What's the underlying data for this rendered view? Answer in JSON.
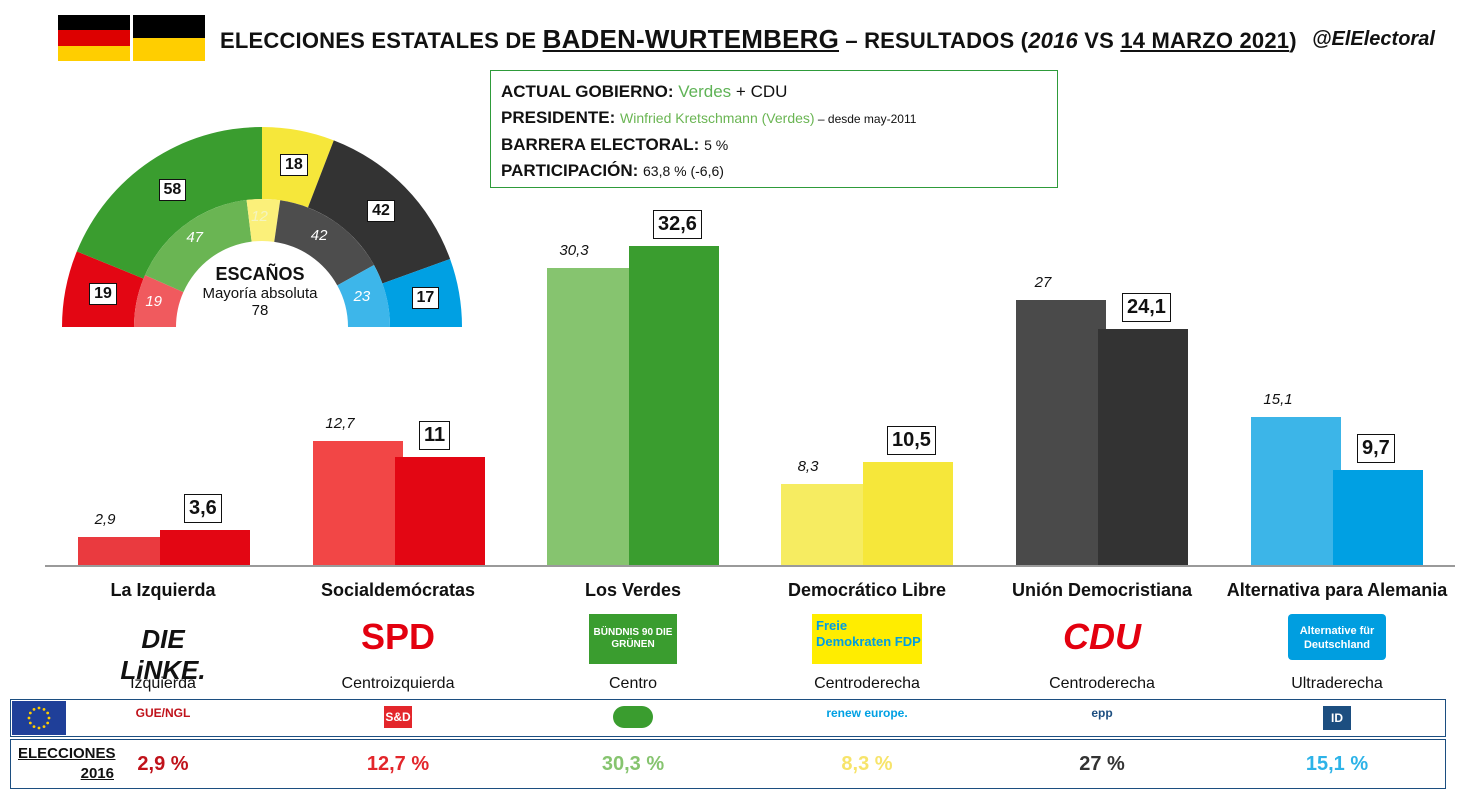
{
  "header": {
    "title_prefix": "ELECCIONES ESTATALES DE ",
    "title_state": "BADEN-WURTEMBERG",
    "title_dash": " – RESULTADOS (",
    "title_year_old": "2016",
    "title_vs": " VS ",
    "title_date": "14 MARZO 2021",
    "title_close": ")",
    "handle": "@ElElectoral",
    "flag_colors": [
      "#000000",
      "#dd0000",
      "#ffce00"
    ]
  },
  "info": {
    "gov_label": "ACTUAL GOBIERNO:",
    "gov_party1": "Verdes",
    "gov_plus": " + ",
    "gov_party2": "CDU",
    "pres_label": "PRESIDENTE:",
    "pres_name": "Winfried Kretschmann (Verdes)",
    "pres_since": " – desde may-2011",
    "barrier_label": "BARRERA ELECTORAL:",
    "barrier_value": "5 %",
    "turnout_label": "PARTICIPACIÓN:",
    "turnout_value": "63,8 % (-6,6)"
  },
  "hemicycle": {
    "title": "ESCAÑOS",
    "majority_label": "Mayoría absoluta",
    "majority_value": "78",
    "seats_2021": [
      19,
      58,
      18,
      42,
      17
    ],
    "seats_2016": [
      19,
      47,
      12,
      42,
      23
    ],
    "seat_labels_2021": [
      "19",
      "58",
      "18",
      "42",
      "17"
    ],
    "seat_labels_2016": [
      "19",
      "47",
      "12",
      "42",
      "23"
    ],
    "colors_2021": [
      "#e30613",
      "#3a9d2f",
      "#f6e73a",
      "#333333",
      "#00a0e3"
    ],
    "colors_2016": [
      "#f05a5e",
      "#6ab553",
      "#fbf07a",
      "#4d4d4d",
      "#3db6ea"
    ]
  },
  "chart_data": {
    "type": "bar",
    "categories": [
      "La Izquierda",
      "Socialdemócratas",
      "Los Verdes",
      "Democrático Libre",
      "Unión Democristiana",
      "Alternativa para Alemania"
    ],
    "series": [
      {
        "name": "2016",
        "values": [
          2.9,
          12.7,
          30.3,
          8.3,
          27,
          15.1
        ]
      },
      {
        "name": "14 MARZO 2021",
        "values": [
          3.6,
          11,
          32.6,
          10.5,
          24.1,
          9.7
        ]
      }
    ],
    "labels_2016": [
      "2,9",
      "12,7",
      "30,3",
      "8,3",
      "27",
      "15,1"
    ],
    "labels_2021": [
      "3,6",
      "11",
      "32,6",
      "10,5",
      "24,1",
      "9,7"
    ],
    "colors_2016": [
      "#ea3a3f",
      "#f24646",
      "#86c46f",
      "#f6ec61",
      "#4a4a4a",
      "#3cb5e8"
    ],
    "colors_2021": [
      "#e30613",
      "#e30613",
      "#3a9d2f",
      "#f6e73a",
      "#333333",
      "#00a0e3"
    ],
    "ylim": [
      0,
      35
    ],
    "grid": false
  },
  "parties": [
    {
      "name": "La Izquierda",
      "logo": "DIE LiNKE.",
      "ideology": "Izquierda",
      "eu_group": "GUE/NGL",
      "pct2016": "2,9 %",
      "color": "#c0121a"
    },
    {
      "name": "Socialdemócratas",
      "logo": "SPD",
      "ideology": "Centroizquierda",
      "eu_group": "S&D",
      "pct2016": "12,7 %",
      "color": "#e3262b"
    },
    {
      "name": "Los Verdes",
      "logo": "BÜNDNIS 90 DIE GRÜNEN",
      "ideology": "Centro",
      "eu_group": "",
      "pct2016": "30,3 %",
      "color": "#86c46f"
    },
    {
      "name": "Democrático Libre",
      "logo": "Freie Demokraten FDP",
      "ideology": "Centroderecha",
      "eu_group": "renew europe.",
      "pct2016": "8,3 %",
      "color": "#f7e46b"
    },
    {
      "name": "Unión Democristiana",
      "logo": "CDU",
      "ideology": "Centroderecha",
      "eu_group": "epp",
      "pct2016": "27 %",
      "color": "#333333"
    },
    {
      "name": "Alternativa para Alemania",
      "logo": "Alternative für Deutschland",
      "ideology": "Ultraderecha",
      "eu_group": "ID",
      "pct2016": "15,1 %",
      "color": "#2db3e8"
    }
  ],
  "elections_2016_label": "ELECCIONES 2016"
}
